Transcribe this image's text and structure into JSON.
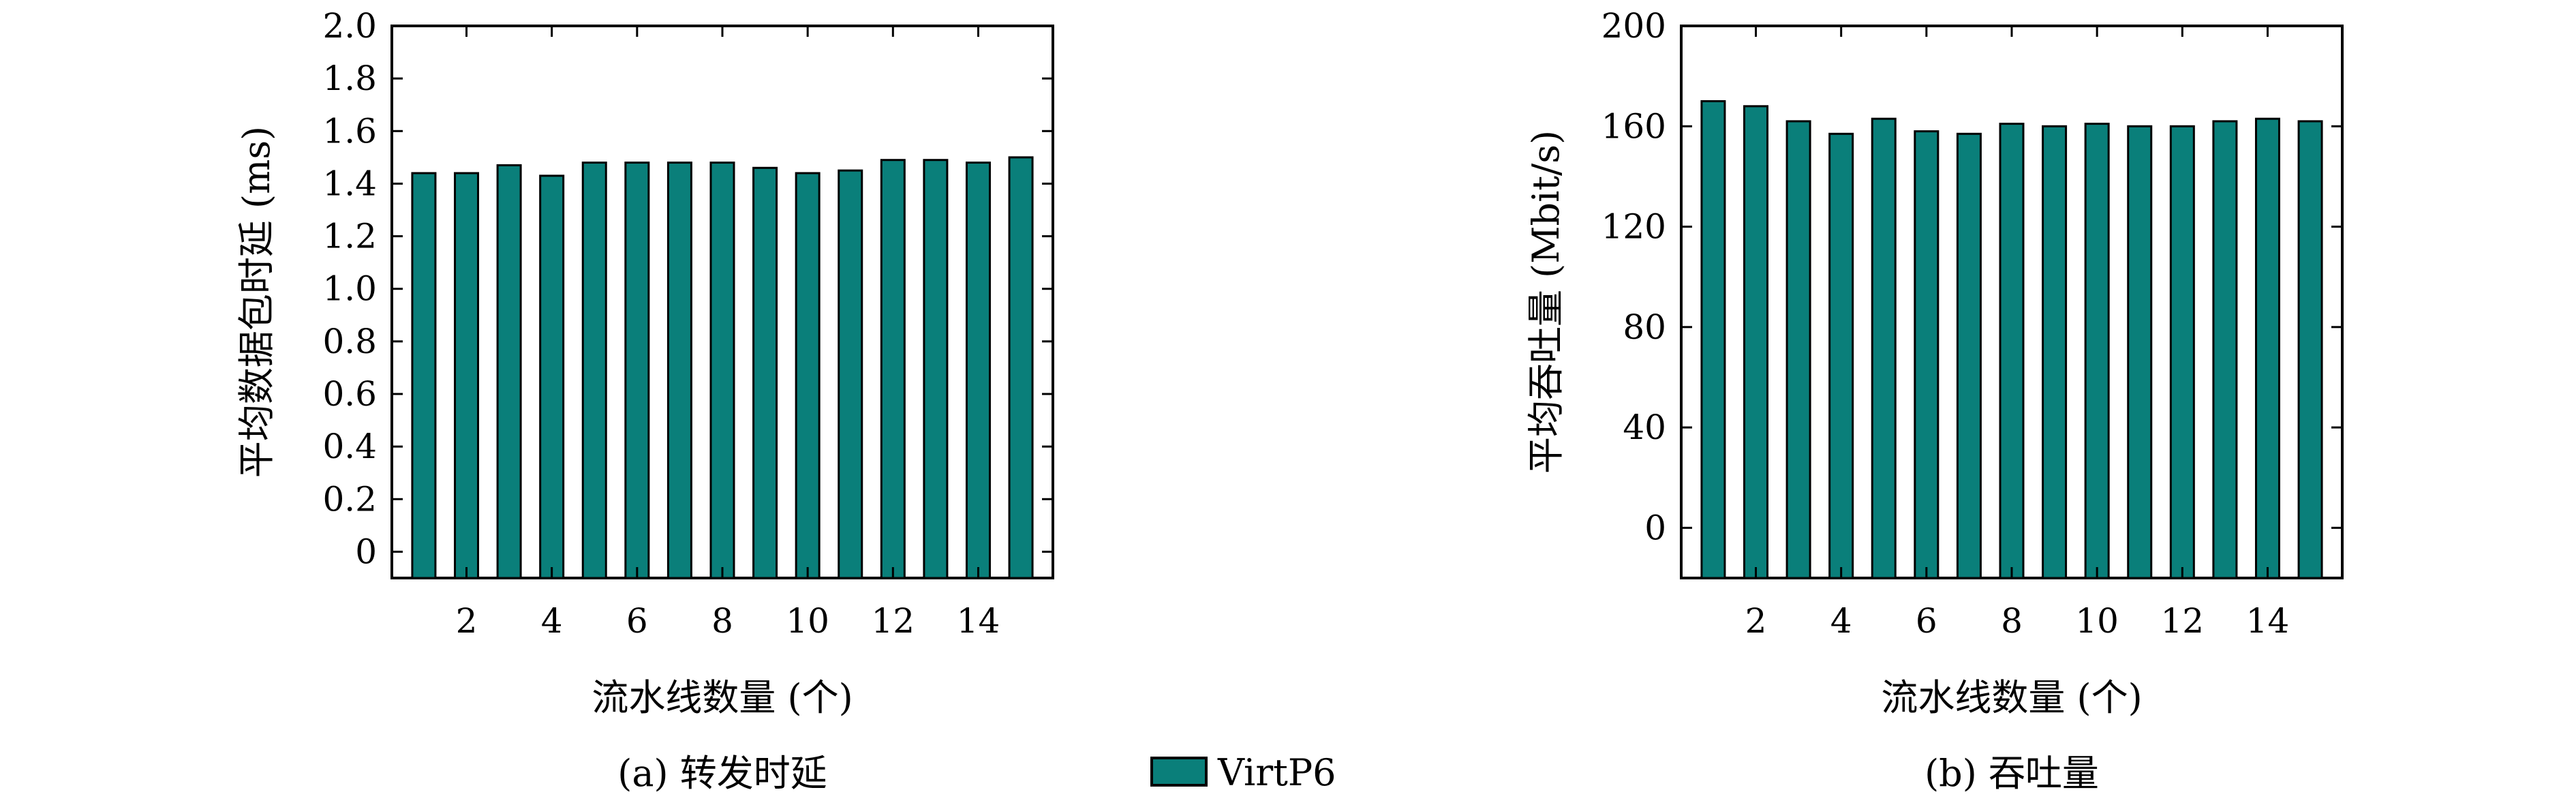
{
  "colors": {
    "bar_fill": "#0a7f7a",
    "bar_stroke": "#000000",
    "background": "#ffffff"
  },
  "chart_data": [
    {
      "type": "bar",
      "caption": "(a) 转发时延",
      "xlabel": "流水线数量 (个)",
      "ylabel": "平均数据包时延 (ms)",
      "x": [
        1,
        2,
        3,
        4,
        5,
        6,
        7,
        8,
        9,
        10,
        11,
        12,
        13,
        14,
        15
      ],
      "xlim": [
        0.25,
        15.75
      ],
      "xticks": [
        "2",
        "4",
        "6",
        "8",
        "10",
        "12",
        "14"
      ],
      "ylim": [
        -0.1,
        2.0
      ],
      "yticks": [
        "0",
        "0.2",
        "0.4",
        "0.6",
        "0.8",
        "1.0",
        "1.2",
        "1.4",
        "1.6",
        "1.8",
        "2.0"
      ],
      "series": [
        {
          "name": "VirtP6",
          "values": [
            1.44,
            1.44,
            1.47,
            1.43,
            1.48,
            1.48,
            1.48,
            1.48,
            1.46,
            1.44,
            1.45,
            1.49,
            1.49,
            1.48,
            1.5
          ]
        }
      ],
      "grid": false
    },
    {
      "type": "bar",
      "caption": "(b) 吞吐量",
      "xlabel": "流水线数量 (个)",
      "ylabel": "平均吞吐量 (Mbit/s)",
      "x": [
        1,
        2,
        3,
        4,
        5,
        6,
        7,
        8,
        9,
        10,
        11,
        12,
        13,
        14,
        15
      ],
      "xlim": [
        0.25,
        15.75
      ],
      "xticks": [
        "2",
        "4",
        "6",
        "8",
        "10",
        "12",
        "14"
      ],
      "ylim": [
        -20,
        200
      ],
      "yticks": [
        "0",
        "40",
        "80",
        "120",
        "160",
        "200"
      ],
      "series": [
        {
          "name": "VirtP6",
          "values": [
            170,
            168,
            162,
            157,
            163,
            158,
            157,
            161,
            160,
            161,
            160,
            160,
            162,
            163,
            162
          ]
        }
      ],
      "grid": false
    }
  ],
  "legend": {
    "label": "VirtP6",
    "placement": "bottom-center"
  }
}
